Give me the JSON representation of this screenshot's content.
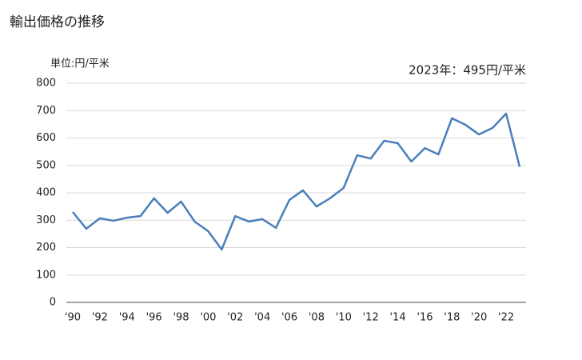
{
  "chart_data": {
    "type": "line",
    "title": "輸出価格の推移",
    "y_axis_label": "単位:円/平米",
    "annotation": "2023年：495円/平米",
    "categories": [
      "'90",
      null,
      "'92",
      null,
      "'94",
      null,
      "'96",
      null,
      "'98",
      null,
      "'00",
      null,
      "'02",
      null,
      "'04",
      null,
      "'06",
      null,
      "'08",
      null,
      "'10",
      null,
      "'12",
      null,
      "'14",
      null,
      "'16",
      null,
      "'18",
      null,
      "'20",
      null,
      "'22",
      null
    ],
    "values": [
      330,
      269,
      307,
      298,
      309,
      315,
      380,
      327,
      368,
      295,
      260,
      193,
      315,
      295,
      304,
      272,
      374,
      409,
      350,
      380,
      418,
      537,
      525,
      590,
      581,
      514,
      563,
      540,
      672,
      648,
      613,
      637,
      689,
      495
    ],
    "color": "#4a7ebb",
    "ylim": [
      0,
      800
    ],
    "yticks": [
      0,
      100,
      200,
      300,
      400,
      500,
      600,
      700,
      800
    ],
    "grid": true
  }
}
